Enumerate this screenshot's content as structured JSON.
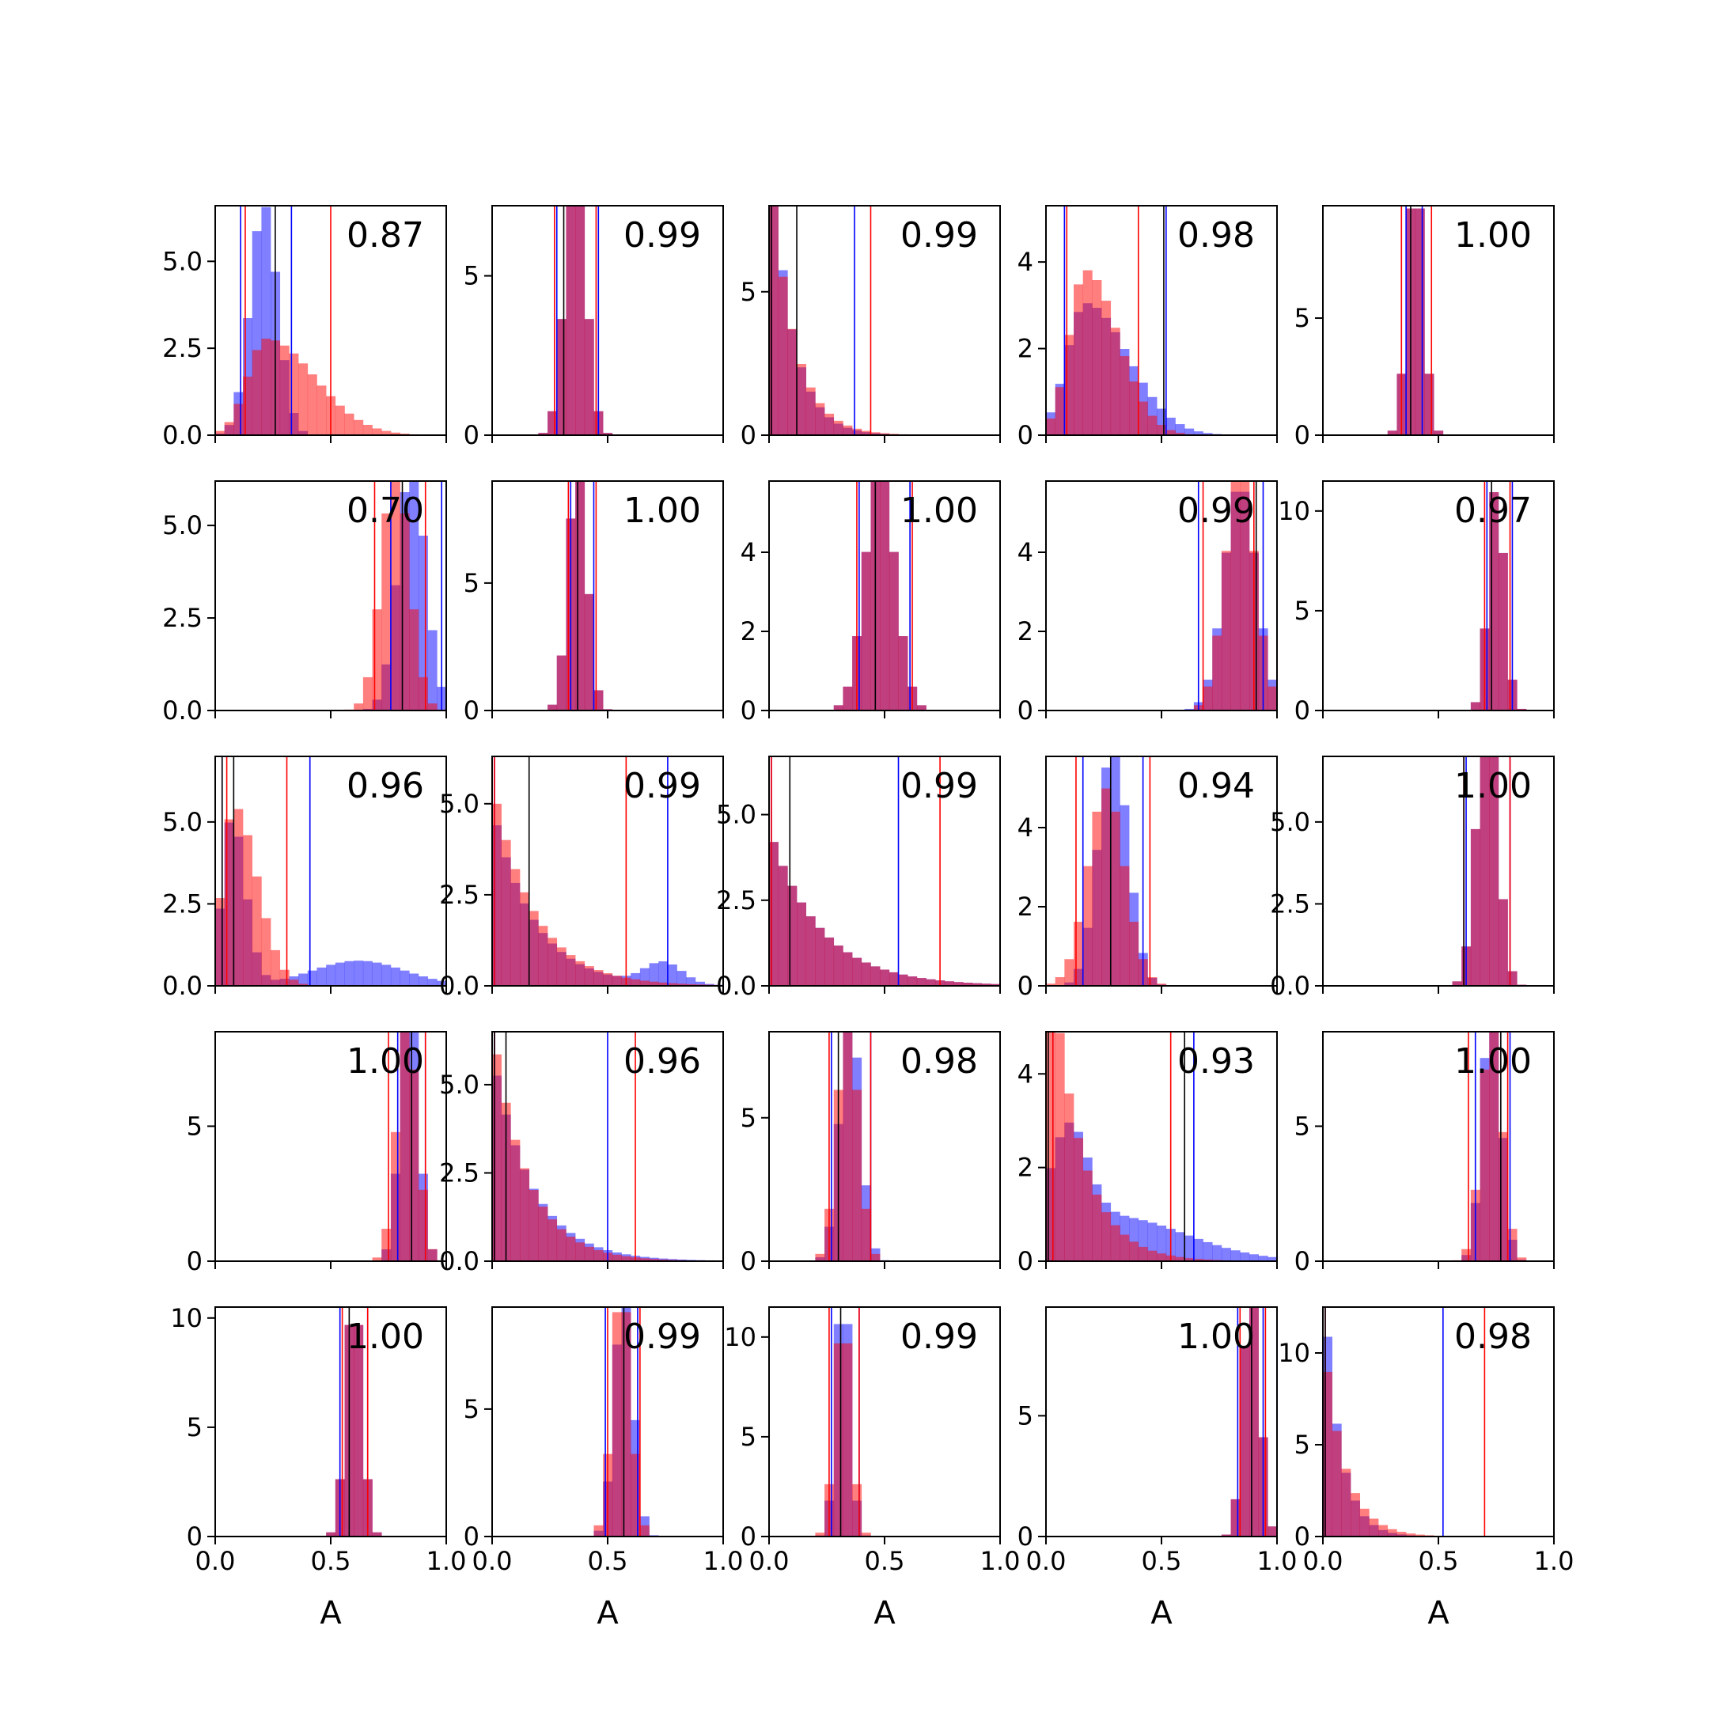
{
  "chart_data": {
    "type": "histogram-grid",
    "rows": 5,
    "cols": 5,
    "xlabel": "A",
    "xlim": [
      0,
      1
    ],
    "xticks": [
      0,
      0.5,
      1
    ],
    "xtick_labels": [
      "0.0",
      "0.5",
      "1.0"
    ],
    "colors": {
      "blue": "#0000ff",
      "red": "#ff0000",
      "overlap": "#b2215f",
      "line_black": "#000000"
    },
    "panels": [
      {
        "score": "0.87",
        "ymax": 6.6,
        "yticks": [
          0,
          2.5,
          5
        ],
        "ytick_labels": [
          "0.0",
          "2.5",
          "5.0"
        ],
        "blue": {
          "c": 0.21,
          "s": 0.06,
          "lo": 0.11,
          "hi": 0.33
        },
        "red": {
          "c": 0.22,
          "s": 0.08,
          "skew": 2.6,
          "lo": 0.13,
          "hi": 0.5
        },
        "black": [
          0.26
        ]
      },
      {
        "score": "0.99",
        "ymax": 7.2,
        "yticks": [
          0,
          5
        ],
        "ytick_labels": [
          "0",
          "5"
        ],
        "blue": {
          "c": 0.36,
          "s": 0.045,
          "lo": 0.28,
          "hi": 0.46
        },
        "red": {
          "c": 0.36,
          "s": 0.045,
          "lo": 0.27,
          "hi": 0.45
        },
        "black": [
          0.31
        ]
      },
      {
        "score": "0.99",
        "ymax": 8.0,
        "yticks": [
          0,
          5
        ],
        "ytick_labels": [
          "0",
          "5"
        ],
        "blue": {
          "exp": 0.09,
          "lo": 0.01,
          "hi": 0.37
        },
        "red": {
          "exp": 0.1,
          "lo": 0.01,
          "hi": 0.44
        },
        "black": [
          0.01,
          0.12
        ]
      },
      {
        "score": "0.98",
        "ymax": 5.3,
        "yticks": [
          0,
          2,
          4
        ],
        "ytick_labels": [
          "0",
          "2",
          "4"
        ],
        "blue": {
          "c": 0.17,
          "s": 0.08,
          "skew": 2.3,
          "lo": 0.08,
          "hi": 0.52
        },
        "red": {
          "c": 0.17,
          "s": 0.07,
          "skew": 2.0,
          "lo": 0.09,
          "hi": 0.4
        },
        "black": [
          0.51
        ]
      },
      {
        "score": "1.00",
        "ymax": 9.8,
        "yticks": [
          0,
          5
        ],
        "ytick_labels": [
          "0",
          "5"
        ],
        "blue": {
          "c": 0.4,
          "s": 0.035,
          "lo": 0.36,
          "hi": 0.43
        },
        "red": {
          "c": 0.4,
          "s": 0.035,
          "lo": 0.34,
          "hi": 0.47
        },
        "black": [
          0.38
        ]
      },
      {
        "score": "0.70",
        "ymax": 6.2,
        "yticks": [
          0,
          2.5,
          5
        ],
        "ytick_labels": [
          "0.0",
          "2.5",
          "5.0"
        ],
        "blue": {
          "c": 0.85,
          "s": 0.06,
          "lo": 0.76,
          "hi": 0.98
        },
        "red": {
          "c": 0.78,
          "s": 0.06,
          "lo": 0.69,
          "hi": 0.91
        },
        "black": [
          0.81
        ]
      },
      {
        "score": "1.00",
        "ymax": 9.0,
        "yticks": [
          0,
          5
        ],
        "ytick_labels": [
          "0",
          "5"
        ],
        "blue": {
          "c": 0.37,
          "s": 0.04,
          "lo": 0.34,
          "hi": 0.44
        },
        "red": {
          "c": 0.37,
          "s": 0.04,
          "lo": 0.33,
          "hi": 0.45
        },
        "black": [
          0.37
        ]
      },
      {
        "score": "1.00",
        "ymax": 5.8,
        "yticks": [
          0,
          2,
          4
        ],
        "ytick_labels": [
          "0",
          "2",
          "4"
        ],
        "blue": {
          "c": 0.48,
          "s": 0.065,
          "lo": 0.39,
          "hi": 0.61
        },
        "red": {
          "c": 0.48,
          "s": 0.065,
          "lo": 0.38,
          "hi": 0.62
        },
        "black": [
          0.46
        ]
      },
      {
        "score": "0.99",
        "ymax": 5.8,
        "yticks": [
          0,
          2,
          4
        ],
        "ytick_labels": [
          "0",
          "2",
          "4"
        ],
        "blue": {
          "c": 0.84,
          "s": 0.07,
          "lo": 0.66,
          "hi": 0.94
        },
        "red": {
          "c": 0.84,
          "s": 0.065,
          "lo": 0.68,
          "hi": 0.9
        },
        "black": [
          0.91
        ]
      },
      {
        "score": "0.97",
        "ymax": 11.5,
        "yticks": [
          0,
          5,
          10
        ],
        "ytick_labels": [
          "0",
          "5",
          "10"
        ],
        "blue": {
          "c": 0.75,
          "s": 0.035,
          "lo": 0.71,
          "hi": 0.82
        },
        "red": {
          "c": 0.75,
          "s": 0.035,
          "lo": 0.7,
          "hi": 0.81
        },
        "black": [
          0.73
        ]
      },
      {
        "score": "0.96",
        "ymax": 7.0,
        "yticks": [
          0,
          2.5,
          5
        ],
        "ytick_labels": [
          "0.0",
          "2.5",
          "5.0"
        ],
        "blue": {
          "c": 0.07,
          "s": 0.04,
          "skew": 1.5,
          "tail": 0.15,
          "lo": 0.03,
          "hi": 0.41
        },
        "red": {
          "c": 0.08,
          "s": 0.05,
          "skew": 2.0,
          "lo": 0.05,
          "hi": 0.31
        },
        "black": [
          0.03,
          0.08
        ]
      },
      {
        "score": "0.99",
        "ymax": 6.3,
        "yticks": [
          0,
          2.5,
          5
        ],
        "ytick_labels": [
          "0.0",
          "2.5",
          "5.0"
        ],
        "blue": {
          "exp": 0.18,
          "bump": 0.74,
          "lo": 0.01,
          "hi": 0.76
        },
        "red": {
          "exp": 0.18,
          "lo": 0.01,
          "hi": 0.58
        },
        "black": [
          0.16
        ]
      },
      {
        "score": "0.99",
        "ymax": 6.7,
        "yticks": [
          0,
          2.5,
          5
        ],
        "ytick_labels": [
          "0.0",
          "2.5",
          "5.0"
        ],
        "blue": {
          "exp": 0.22,
          "lo": 0.01,
          "hi": 0.56
        },
        "red": {
          "exp": 0.22,
          "lo": 0.01,
          "hi": 0.74
        },
        "black": [
          0.09
        ]
      },
      {
        "score": "0.94",
        "ymax": 5.8,
        "yticks": [
          0,
          2,
          4
        ],
        "ytick_labels": [
          "0",
          "2",
          "4"
        ],
        "blue": {
          "c": 0.29,
          "s": 0.065,
          "lo": 0.16,
          "hi": 0.42
        },
        "red": {
          "c": 0.26,
          "s": 0.08,
          "lo": 0.13,
          "hi": 0.45
        },
        "black": [
          0.28
        ]
      },
      {
        "score": "1.00",
        "ymax": 7.0,
        "yticks": [
          0,
          2.5,
          5
        ],
        "ytick_labels": [
          "0.0",
          "2.5",
          "5.0"
        ],
        "blue": {
          "c": 0.71,
          "s": 0.045,
          "lo": 0.62,
          "hi": 0.81
        },
        "red": {
          "c": 0.71,
          "s": 0.045,
          "lo": 0.61,
          "hi": 0.81
        },
        "black": [
          0.61
        ]
      },
      {
        "score": "1.00",
        "ymax": 8.5,
        "yticks": [
          0,
          5
        ],
        "ytick_labels": [
          "0",
          "5"
        ],
        "blue": {
          "c": 0.84,
          "s": 0.04,
          "lo": 0.79,
          "hi": 0.91
        },
        "red": {
          "c": 0.83,
          "s": 0.045,
          "lo": 0.75,
          "hi": 0.91
        },
        "black": [
          0.85
        ]
      },
      {
        "score": "0.96",
        "ymax": 6.5,
        "yticks": [
          0,
          2.5,
          5
        ],
        "ytick_labels": [
          "0.0",
          "2.5",
          "5.0"
        ],
        "blue": {
          "exp": 0.17,
          "lo": 0.01,
          "hi": 0.5
        },
        "red": {
          "exp": 0.15,
          "lo": 0.01,
          "hi": 0.62
        },
        "black": [
          0.01,
          0.06
        ]
      },
      {
        "score": "0.98",
        "ymax": 8.0,
        "yticks": [
          0,
          5
        ],
        "ytick_labels": [
          "0",
          "5"
        ],
        "blue": {
          "c": 0.35,
          "s": 0.045,
          "lo": 0.27,
          "hi": 0.44
        },
        "red": {
          "c": 0.34,
          "s": 0.045,
          "lo": 0.26,
          "hi": 0.44
        },
        "black": [
          0.3
        ]
      },
      {
        "score": "0.93",
        "ymax": 4.9,
        "yticks": [
          0,
          2,
          4
        ],
        "ytick_labels": [
          "0",
          "2",
          "4"
        ],
        "blue": {
          "c": 0.1,
          "s": 0.08,
          "wide": 0.32,
          "lo": 0.03,
          "hi": 0.64
        },
        "red": {
          "exp": 0.13,
          "lo": 0.03,
          "hi": 0.54
        },
        "black": [
          0.01,
          0.6
        ]
      },
      {
        "score": "1.00",
        "ymax": 8.5,
        "yticks": [
          0,
          5
        ],
        "ytick_labels": [
          "0",
          "5"
        ],
        "blue": {
          "c": 0.73,
          "s": 0.04,
          "lo": 0.66,
          "hi": 0.81
        },
        "red": {
          "c": 0.73,
          "s": 0.045,
          "lo": 0.63,
          "hi": 0.8
        },
        "black": [
          0.77
        ]
      },
      {
        "score": "1.00",
        "ymax": 10.5,
        "yticks": [
          0,
          5,
          10
        ],
        "ytick_labels": [
          "0",
          "5",
          "10"
        ],
        "blue": {
          "c": 0.6,
          "s": 0.035,
          "lo": 0.54,
          "hi": 0.66
        },
        "red": {
          "c": 0.6,
          "s": 0.035,
          "lo": 0.55,
          "hi": 0.66
        },
        "black": [
          0.58
        ]
      },
      {
        "score": "0.99",
        "ymax": 9.0,
        "yticks": [
          0,
          5
        ],
        "ytick_labels": [
          "0",
          "5"
        ],
        "blue": {
          "c": 0.57,
          "s": 0.04,
          "lo": 0.49,
          "hi": 0.63
        },
        "red": {
          "c": 0.56,
          "s": 0.04,
          "lo": 0.5,
          "hi": 0.64
        },
        "black": [
          0.57
        ]
      },
      {
        "score": "0.99",
        "ymax": 11.5,
        "yticks": [
          0,
          5,
          10
        ],
        "ytick_labels": [
          "0",
          "5",
          "10"
        ],
        "blue": {
          "c": 0.32,
          "s": 0.03,
          "lo": 0.27,
          "hi": 0.39
        },
        "red": {
          "c": 0.32,
          "s": 0.035,
          "lo": 0.26,
          "hi": 0.39
        },
        "black": [
          0.31
        ]
      },
      {
        "score": "1.00",
        "ymax": 9.5,
        "yticks": [
          0,
          5
        ],
        "ytick_labels": [
          "0",
          "5"
        ],
        "blue": {
          "c": 0.89,
          "s": 0.035,
          "lo": 0.83,
          "hi": 0.94
        },
        "red": {
          "c": 0.89,
          "s": 0.035,
          "lo": 0.84,
          "hi": 0.95
        },
        "black": [
          0.89
        ]
      },
      {
        "score": "0.98",
        "ymax": 12.5,
        "yticks": [
          0,
          5,
          10
        ],
        "ytick_labels": [
          "0",
          "5",
          "10"
        ],
        "blue": {
          "exp": 0.07,
          "lo": 0.01,
          "hi": 0.52
        },
        "red": {
          "exp": 0.09,
          "lo": 0.01,
          "hi": 0.7
        },
        "black": [
          0.01
        ]
      }
    ]
  }
}
